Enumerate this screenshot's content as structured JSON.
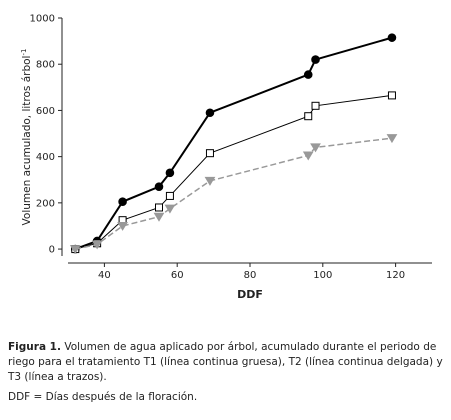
{
  "chart_data": {
    "type": "line",
    "xlabel": "DDF",
    "ylabel": "Volumen acumulado, litros árbol",
    "ylabel_sup": "-1",
    "x": [
      32,
      38,
      45,
      55,
      58,
      69,
      96,
      98,
      119
    ],
    "series": [
      {
        "color": "#000000",
        "line_style": "solid",
        "line_width": 2,
        "marker": "circle",
        "marker_fill": "#000000",
        "values": [
          0,
          35,
          205,
          270,
          330,
          590,
          755,
          820,
          915
        ]
      },
      {
        "color": "#000000",
        "line_style": "solid",
        "line_width": 1,
        "marker": "square",
        "marker_fill": "#ffffff",
        "values": [
          0,
          25,
          125,
          180,
          230,
          415,
          575,
          620,
          665
        ]
      },
      {
        "color": "#999999",
        "line_style": "dashed",
        "line_width": 1.5,
        "marker": "triangle-down",
        "marker_fill": "#999999",
        "values": [
          0,
          20,
          100,
          140,
          175,
          295,
          405,
          440,
          480
        ]
      }
    ],
    "xlim": [
      30,
      130
    ],
    "xticks": [
      40,
      60,
      80,
      100,
      120
    ],
    "ylim": [
      -30,
      1000
    ],
    "yticks": [
      0,
      200,
      400,
      600,
      800,
      1000
    ],
    "grid": false
  },
  "caption": {
    "label": "Figura 1.",
    "text": " Volumen de agua aplicado por árbol, acumulado durante el periodo de riego para el tratamiento T1 (línea continua gruesa), T2 (línea continua delgada) y T3 (línea a trazos).",
    "note": "DDF = Días después de la floración."
  }
}
